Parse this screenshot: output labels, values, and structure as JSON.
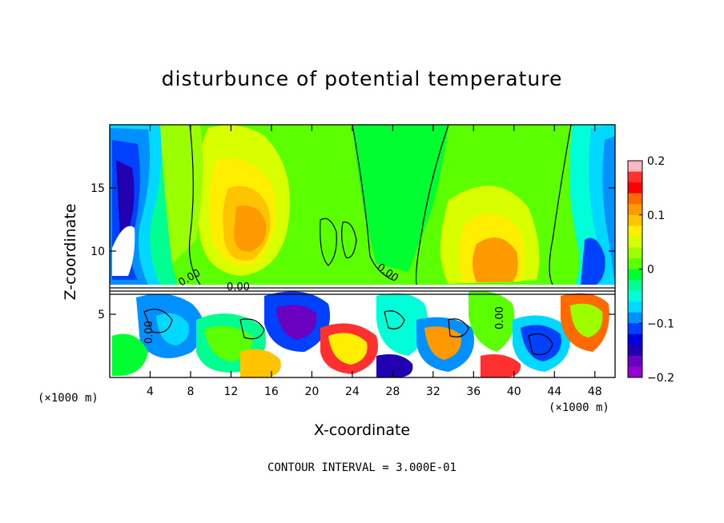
{
  "chart_data": {
    "type": "heatmap",
    "title": "disturbunce of potential temperature",
    "xlabel": "X-coordinate",
    "ylabel": "Z-coordinate",
    "x_unit_left": "(×1000 m)",
    "x_unit_right": "(×1000 m)",
    "note": "CONTOUR INTERVAL = 3.000E-01",
    "xlim": [
      0,
      50
    ],
    "ylim": [
      0,
      20
    ],
    "x_ticks": [
      4,
      8,
      12,
      16,
      20,
      24,
      28,
      32,
      36,
      40,
      44,
      48
    ],
    "y_ticks": [
      5,
      10,
      15
    ],
    "colorbar": {
      "range": [
        -0.2,
        0.2
      ],
      "tick_values": [
        0.2,
        0.1,
        0,
        -0.1,
        -0.2
      ],
      "tick_labels": [
        "0.2",
        "0.1",
        "0",
        "−0.1",
        "−0.2"
      ],
      "colors": [
        "#ffb6c1",
        "#ff3030",
        "#ff0000",
        "#ff6a00",
        "#ff9900",
        "#ffc400",
        "#ffee00",
        "#d8ff00",
        "#9cff00",
        "#5cff00",
        "#00ff30",
        "#00ff90",
        "#00ffd8",
        "#00d8ff",
        "#0090ff",
        "#0040ff",
        "#0000e0",
        "#2000b0",
        "#6a00c0",
        "#9400d3"
      ]
    },
    "contour_labels": [
      "0.00",
      "0.00",
      "0.00",
      "0.00",
      "0.00"
    ]
  }
}
